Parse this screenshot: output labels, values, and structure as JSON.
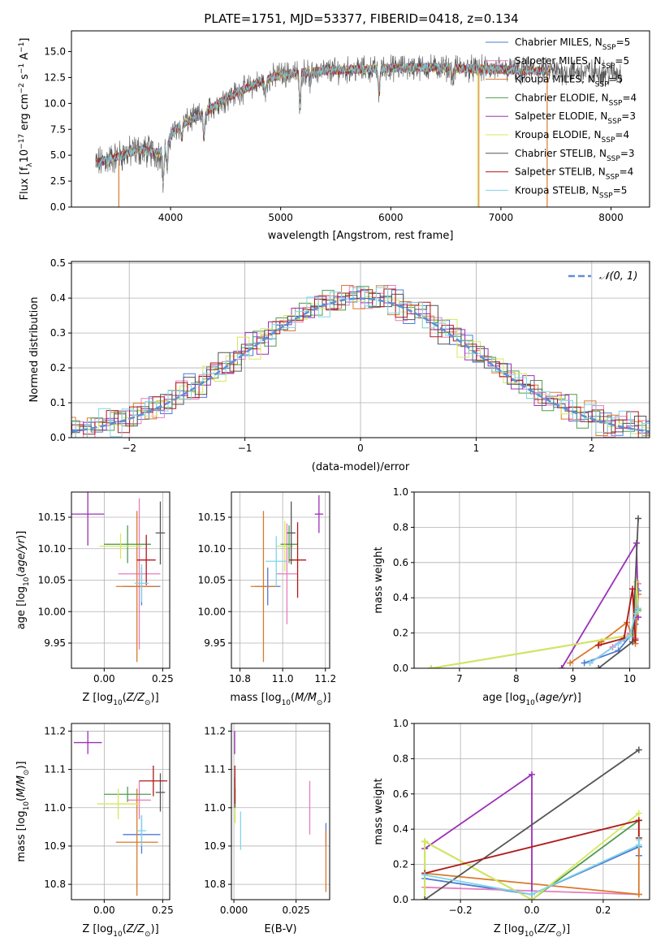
{
  "figure_title": "PLATE=1751, MJD=53377, FIBERID=0418, z=0.134",
  "colors": {
    "Chabrier MILES": "#4f7ad6",
    "Salpeter MILES": "#e87cbe",
    "Kroupa MILES": "#d97a2b",
    "Chabrier ELODIE": "#4f9b4f",
    "Salpeter ELODIE": "#9b30b8",
    "Kroupa ELODIE": "#d6e85a",
    "Chabrier STELIB": "#555555",
    "Salpeter STELIB": "#b01818",
    "Kroupa STELIB": "#7fd6e8",
    "normal_curve": "#5b8fd9"
  },
  "chart_data": [
    {
      "id": "spectrum",
      "type": "line",
      "title": "PLATE=1751, MJD=53377, FIBERID=0418, z=0.134",
      "xlabel": "wavelength [Angstrom, rest frame]",
      "ylabel_main": "Flux [f",
      "ylabel_sub": "λ",
      "ylabel_rest": "10",
      "ylabel_exp": "−17",
      "ylabel_tail": " erg cm",
      "ylabel_exp2": "−2",
      "ylabel_tail2": " s",
      "ylabel_exp3": "−1",
      "ylabel_tail3": " A",
      "ylabel_exp4": "−1",
      "ylabel_end": "]",
      "xlim": [
        3100,
        8350
      ],
      "ylim": [
        0,
        17
      ],
      "xticks": [
        4000,
        5000,
        6000,
        7000,
        8000
      ],
      "yticks": [
        0.0,
        2.5,
        5.0,
        7.5,
        10.0,
        12.5,
        15.0
      ],
      "ytick_labels": [
        "0.0",
        "2.5",
        "5.0",
        "7.5",
        "10.0",
        "12.5",
        "15.0"
      ],
      "legend_position": "upper right",
      "legend": [
        {
          "name": "Chabrier MILES",
          "nssp": "5"
        },
        {
          "name": "Salpeter MILES",
          "nssp": "5"
        },
        {
          "name": "Kroupa MILES",
          "nssp": "5"
        },
        {
          "name": "Chabrier ELODIE",
          "nssp": "4"
        },
        {
          "name": "Salpeter ELODIE",
          "nssp": "3"
        },
        {
          "name": "Kroupa ELODIE",
          "nssp": "4"
        },
        {
          "name": "Chabrier STELIB",
          "nssp": "3"
        },
        {
          "name": "Salpeter STELIB",
          "nssp": "4"
        },
        {
          "name": "Kroupa STELIB",
          "nssp": "5"
        }
      ],
      "legend_suffix_pre": ", N",
      "legend_suffix_sub": "SSP",
      "legend_suffix_eq": "=",
      "continuum": {
        "x": [
          3320,
          3500,
          3700,
          3900,
          4000,
          4100,
          4300,
          4500,
          4800,
          5000,
          5200,
          5500,
          5800,
          6000,
          6300,
          6600,
          6900,
          7200,
          7500,
          7800,
          8100
        ],
        "y": [
          4.2,
          4.8,
          5.5,
          5.2,
          7.0,
          8.0,
          9.0,
          10.5,
          12.0,
          12.8,
          13.0,
          13.2,
          13.3,
          13.4,
          13.5,
          13.4,
          13.3,
          13.2,
          13.1,
          13.0,
          12.9
        ]
      },
      "absorption_features": [
        {
          "x": 3934,
          "depth": 3.5
        },
        {
          "x": 3969,
          "depth": 3.0
        },
        {
          "x": 4101,
          "depth": 1.5
        },
        {
          "x": 4304,
          "depth": 2.5
        },
        {
          "x": 4861,
          "depth": 1.5
        },
        {
          "x": 5175,
          "depth": 3.0
        },
        {
          "x": 5270,
          "depth": 1.2
        },
        {
          "x": 5893,
          "depth": 2.5
        },
        {
          "x": 6563,
          "depth": 1.2
        },
        {
          "x": 7180,
          "depth": 1.0
        }
      ],
      "model_range": [
        3320,
        7450
      ],
      "data_range": [
        3320,
        8100
      ]
    },
    {
      "id": "residuals",
      "type": "bar",
      "xlabel": "(data-model)/error",
      "ylabel": "Normed distribution",
      "xlim": [
        -2.5,
        2.5
      ],
      "ylim": [
        0,
        0.505
      ],
      "xticks": [
        -2,
        -1,
        0,
        1,
        2
      ],
      "xtick_labels": [
        "−2",
        "−1",
        "0",
        "1",
        "2"
      ],
      "yticks": [
        0.0,
        0.1,
        0.2,
        0.3,
        0.4,
        0.5
      ],
      "ytick_labels": [
        "0.0",
        "0.1",
        "0.2",
        "0.3",
        "0.4",
        "0.5"
      ],
      "bin_width": 0.1,
      "legend_label": "𝒩(0, 1)",
      "legend_position": "upper right",
      "histogram_noise": [
        0.0,
        0.03,
        -0.02,
        0.04,
        -0.03,
        0.02,
        0.05,
        -0.04,
        0.03
      ]
    },
    {
      "id": "age_vs_Z",
      "type": "scatter",
      "xlabel": "Z [log10(Z/Z⊙)]",
      "ylabel": "age  [log10(age/yr)]",
      "xlim": [
        -0.14,
        0.28
      ],
      "ylim": [
        9.91,
        10.19
      ],
      "xticks": [
        0.0,
        0.25
      ],
      "xtick_labels": [
        "0.00",
        "0.25"
      ],
      "yticks": [
        9.95,
        10.0,
        10.05,
        10.1,
        10.15
      ],
      "ytick_labels": [
        "9.95",
        "10.00",
        "10.05",
        "10.10",
        "10.15"
      ],
      "points": [
        {
          "model": "Chabrier MILES",
          "x": 0.16,
          "y": 10.04,
          "xerr": 0.08,
          "yerr": 0.03
        },
        {
          "model": "Salpeter MILES",
          "x": 0.15,
          "y": 10.06,
          "xerr": 0.09,
          "yerr": 0.12
        },
        {
          "model": "Kroupa MILES",
          "x": 0.14,
          "y": 10.04,
          "xerr": 0.09,
          "yerr": 0.12
        },
        {
          "model": "Chabrier ELODIE",
          "x": 0.1,
          "y": 10.107,
          "xerr": 0.1,
          "yerr": 0.03
        },
        {
          "model": "Salpeter ELODIE",
          "x": -0.07,
          "y": 10.155,
          "xerr": 0.07,
          "yerr": 0.05
        },
        {
          "model": "Kroupa ELODIE",
          "x": 0.07,
          "y": 10.104,
          "xerr": 0.09,
          "yerr": 0.02
        },
        {
          "model": "Chabrier STELIB",
          "x": 0.24,
          "y": 10.125,
          "xerr": 0.02,
          "yerr": 0.05
        },
        {
          "model": "Salpeter STELIB",
          "x": 0.18,
          "y": 10.082,
          "xerr": 0.04,
          "yerr": 0.04
        },
        {
          "model": "Kroupa STELIB",
          "x": 0.16,
          "y": 10.045,
          "xerr": 0.03,
          "yerr": 0.03
        }
      ]
    },
    {
      "id": "age_vs_mass",
      "type": "scatter",
      "xlabel": "mass [log10(M/M⊙)]",
      "ylabel": "",
      "xlim": [
        10.76,
        11.22
      ],
      "ylim": [
        9.91,
        10.19
      ],
      "xticks": [
        10.8,
        11.0,
        11.2
      ],
      "xtick_labels": [
        "10.8",
        "11.0",
        "11.2"
      ],
      "yticks": [
        9.95,
        10.0,
        10.05,
        10.1,
        10.15
      ],
      "ytick_labels": [
        "9.95",
        "10.00",
        "10.05",
        "10.10",
        "10.15"
      ],
      "points": [
        {
          "model": "Chabrier MILES",
          "x": 10.93,
          "y": 10.04,
          "xerr": 0.06,
          "yerr": 0.03
        },
        {
          "model": "Salpeter MILES",
          "x": 11.02,
          "y": 10.06,
          "xerr": 0.05,
          "yerr": 0.08
        },
        {
          "model": "Kroupa MILES",
          "x": 10.91,
          "y": 10.04,
          "xerr": 0.06,
          "yerr": 0.12
        },
        {
          "model": "Chabrier ELODIE",
          "x": 11.03,
          "y": 10.107,
          "xerr": 0.04,
          "yerr": 0.03
        },
        {
          "model": "Salpeter ELODIE",
          "x": 11.17,
          "y": 10.155,
          "xerr": 0.02,
          "yerr": 0.03
        },
        {
          "model": "Kroupa ELODIE",
          "x": 11.01,
          "y": 10.104,
          "xerr": 0.04,
          "yerr": 0.04
        },
        {
          "model": "Chabrier STELIB",
          "x": 11.04,
          "y": 10.125,
          "xerr": 0.02,
          "yerr": 0.05
        },
        {
          "model": "Salpeter STELIB",
          "x": 11.07,
          "y": 10.082,
          "xerr": 0.04,
          "yerr": 0.06
        },
        {
          "model": "Kroupa STELIB",
          "x": 10.97,
          "y": 10.08,
          "xerr": 0.05,
          "yerr": 0.04
        }
      ]
    },
    {
      "id": "mass_weight_vs_age",
      "type": "line",
      "xlabel": "age  [log10(age/yr)]",
      "ylabel": "mass weight",
      "xlim": [
        6.2,
        10.35
      ],
      "ylim": [
        0,
        1
      ],
      "xticks": [
        7,
        8,
        9,
        10
      ],
      "xtick_labels": [
        "7",
        "8",
        "9",
        "10"
      ],
      "yticks": [
        0.0,
        0.2,
        0.4,
        0.6,
        0.8,
        1.0
      ],
      "ytick_labels": [
        "0.0",
        "0.2",
        "0.4",
        "0.6",
        "0.8",
        "1.0"
      ],
      "series": [
        {
          "model": "Chabrier MILES",
          "x": [
            9.2,
            9.8,
            10.0,
            10.1,
            10.15
          ],
          "y": [
            0.03,
            0.1,
            0.18,
            0.25,
            0.44
          ]
        },
        {
          "model": "Salpeter MILES",
          "x": [
            9.3,
            9.7,
            10.0,
            10.1,
            10.15
          ],
          "y": [
            0.03,
            0.12,
            0.2,
            0.17,
            0.48
          ]
        },
        {
          "model": "Kroupa MILES",
          "x": [
            8.95,
            9.5,
            9.95,
            10.1,
            10.15
          ],
          "y": [
            0.03,
            0.15,
            0.26,
            0.14,
            0.42
          ]
        },
        {
          "model": "Chabrier ELODIE",
          "x": [
            6.5,
            10.05,
            10.12,
            10.15
          ],
          "y": [
            0.0,
            0.19,
            0.45,
            0.33
          ]
        },
        {
          "model": "Salpeter ELODIE",
          "x": [
            8.8,
            10.12,
            10.15
          ],
          "y": [
            0.0,
            0.71,
            0.29
          ]
        },
        {
          "model": "Kroupa ELODIE",
          "x": [
            6.5,
            10.05,
            10.12,
            10.15
          ],
          "y": [
            0.0,
            0.19,
            0.49,
            0.32
          ]
        },
        {
          "model": "Chabrier STELIB",
          "x": [
            9.45,
            10.05,
            10.15
          ],
          "y": [
            0.0,
            0.15,
            0.85
          ]
        },
        {
          "model": "Salpeter STELIB",
          "x": [
            9.45,
            9.9,
            10.05,
            10.1
          ],
          "y": [
            0.13,
            0.17,
            0.45,
            0.16
          ]
        },
        {
          "model": "Kroupa STELIB",
          "x": [
            9.3,
            9.8,
            10.0,
            10.1,
            10.15
          ],
          "y": [
            0.03,
            0.14,
            0.18,
            0.31,
            0.34
          ]
        }
      ]
    },
    {
      "id": "mass_vs_Z",
      "type": "scatter",
      "xlabel": "Z [log10(Z/Z⊙)]",
      "ylabel": "mass [log10(M/M⊙)]",
      "xlim": [
        -0.14,
        0.28
      ],
      "ylim": [
        10.76,
        11.22
      ],
      "xticks": [
        0.0,
        0.25
      ],
      "xtick_labels": [
        "0.00",
        "0.25"
      ],
      "yticks": [
        10.8,
        10.9,
        11.0,
        11.1,
        11.2
      ],
      "ytick_labels": [
        "10.8",
        "10.9",
        "11.0",
        "11.1",
        "11.2"
      ],
      "points": [
        {
          "model": "Chabrier MILES",
          "x": 0.16,
          "y": 10.93,
          "xerr": 0.08,
          "yerr": 0.05
        },
        {
          "model": "Salpeter MILES",
          "x": 0.15,
          "y": 11.02,
          "xerr": 0.05,
          "yerr": 0.05
        },
        {
          "model": "Kroupa MILES",
          "x": 0.14,
          "y": 10.91,
          "xerr": 0.09,
          "yerr": 0.14
        },
        {
          "model": "Chabrier ELODIE",
          "x": 0.1,
          "y": 11.035,
          "xerr": 0.1,
          "yerr": 0.02
        },
        {
          "model": "Salpeter ELODIE",
          "x": -0.07,
          "y": 11.17,
          "xerr": 0.06,
          "yerr": 0.03
        },
        {
          "model": "Kroupa ELODIE",
          "x": 0.06,
          "y": 11.01,
          "xerr": 0.09,
          "yerr": 0.04
        },
        {
          "model": "Chabrier STELIB",
          "x": 0.24,
          "y": 11.04,
          "xerr": 0.02,
          "yerr": 0.05
        },
        {
          "model": "Salpeter STELIB",
          "x": 0.21,
          "y": 11.07,
          "xerr": 0.06,
          "yerr": 0.04
        },
        {
          "model": "Kroupa STELIB",
          "x": 0.16,
          "y": 10.94,
          "xerr": 0.02,
          "yerr": 0.04
        }
      ]
    },
    {
      "id": "mass_vs_ebv",
      "type": "scatter",
      "xlabel": "E(B-V)",
      "ylabel": "",
      "xlim": [
        -0.001,
        0.0385
      ],
      "ylim": [
        10.76,
        11.22
      ],
      "xticks": [
        0.0,
        0.025
      ],
      "xtick_labels": [
        "0.000",
        "0.025"
      ],
      "yticks": [
        10.8,
        10.9,
        11.0,
        11.1,
        11.2
      ],
      "ytick_labels": [
        "10.8",
        "10.9",
        "11.0",
        "11.1",
        "11.2"
      ],
      "points": [
        {
          "model": "Chabrier MILES",
          "x": 0.037,
          "y": 10.93,
          "xerr": 0.0,
          "yerr": 0.03
        },
        {
          "model": "Salpeter MILES",
          "x": 0.0305,
          "y": 11.0,
          "xerr": 0.0,
          "yerr": 0.07
        },
        {
          "model": "Kroupa MILES",
          "x": 0.037,
          "y": 10.86,
          "xerr": 0.0,
          "yerr": 0.08
        },
        {
          "model": "Chabrier ELODIE",
          "x": 0.0005,
          "y": 11.03,
          "xerr": 0.0,
          "yerr": 0.02
        },
        {
          "model": "Salpeter ELODIE",
          "x": 0.0003,
          "y": 11.17,
          "xerr": 0.0,
          "yerr": 0.03
        },
        {
          "model": "Kroupa ELODIE",
          "x": 0.0005,
          "y": 11.0,
          "xerr": 0.0,
          "yerr": 0.04
        },
        {
          "model": "Chabrier STELIB",
          "x": 0.0004,
          "y": 11.04,
          "xerr": 0.0,
          "yerr": 0.04
        },
        {
          "model": "Salpeter STELIB",
          "x": 0.0004,
          "y": 11.06,
          "xerr": 0.0,
          "yerr": 0.05
        },
        {
          "model": "Kroupa STELIB",
          "x": 0.0027,
          "y": 10.94,
          "xerr": 0.0,
          "yerr": 0.05
        }
      ]
    },
    {
      "id": "mass_weight_vs_Z",
      "type": "line",
      "xlabel": "Z [log10(Z/Z⊙)]",
      "ylabel": "mass weight",
      "xlim": [
        -0.33,
        0.33
      ],
      "ylim": [
        0,
        1
      ],
      "xticks": [
        -0.2,
        0.0,
        0.2
      ],
      "xtick_labels": [
        "−0.2",
        "0.0",
        "0.2"
      ],
      "yticks": [
        0.0,
        0.2,
        0.4,
        0.6,
        0.8,
        1.0
      ],
      "ytick_labels": [
        "0.0",
        "0.2",
        "0.4",
        "0.6",
        "0.8",
        "1.0"
      ],
      "series": [
        {
          "model": "Chabrier MILES",
          "x": [
            -0.3,
            0.0,
            0.3,
            0.3
          ],
          "y": [
            0.12,
            0.03,
            0.3,
            0.25
          ]
        },
        {
          "model": "Salpeter MILES",
          "x": [
            -0.3,
            0.3
          ],
          "y": [
            0.07,
            0.03
          ]
        },
        {
          "model": "Kroupa MILES",
          "x": [
            -0.3,
            0.3,
            0.3
          ],
          "y": [
            0.15,
            0.03,
            0.45
          ]
        },
        {
          "model": "Chabrier ELODIE",
          "x": [
            -0.3,
            -0.3,
            0.0,
            0.3
          ],
          "y": [
            0.0,
            0.33,
            0.0,
            0.45
          ]
        },
        {
          "model": "Salpeter ELODIE",
          "x": [
            -0.3,
            0.0,
            0.0
          ],
          "y": [
            0.29,
            0.71,
            0.0
          ]
        },
        {
          "model": "Kroupa ELODIE",
          "x": [
            -0.3,
            -0.3,
            0.0,
            0.3
          ],
          "y": [
            0.0,
            0.33,
            0.0,
            0.49
          ]
        },
        {
          "model": "Chabrier STELIB",
          "x": [
            -0.3,
            0.3
          ],
          "y": [
            0.0,
            0.85
          ]
        },
        {
          "model": "Salpeter STELIB",
          "x": [
            -0.3,
            0.3,
            0.3
          ],
          "y": [
            0.15,
            0.45,
            0.35
          ]
        },
        {
          "model": "Kroupa STELIB",
          "x": [
            -0.3,
            0.0,
            0.3,
            0.3
          ],
          "y": [
            0.14,
            0.03,
            0.31,
            0.34
          ]
        }
      ]
    }
  ]
}
